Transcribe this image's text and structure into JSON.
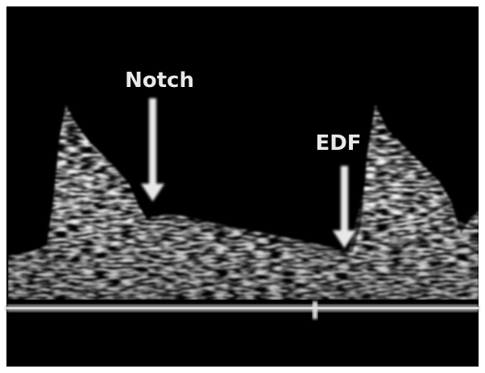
{
  "annotations": {
    "notch": "Notch",
    "edf": "EDF"
  }
}
